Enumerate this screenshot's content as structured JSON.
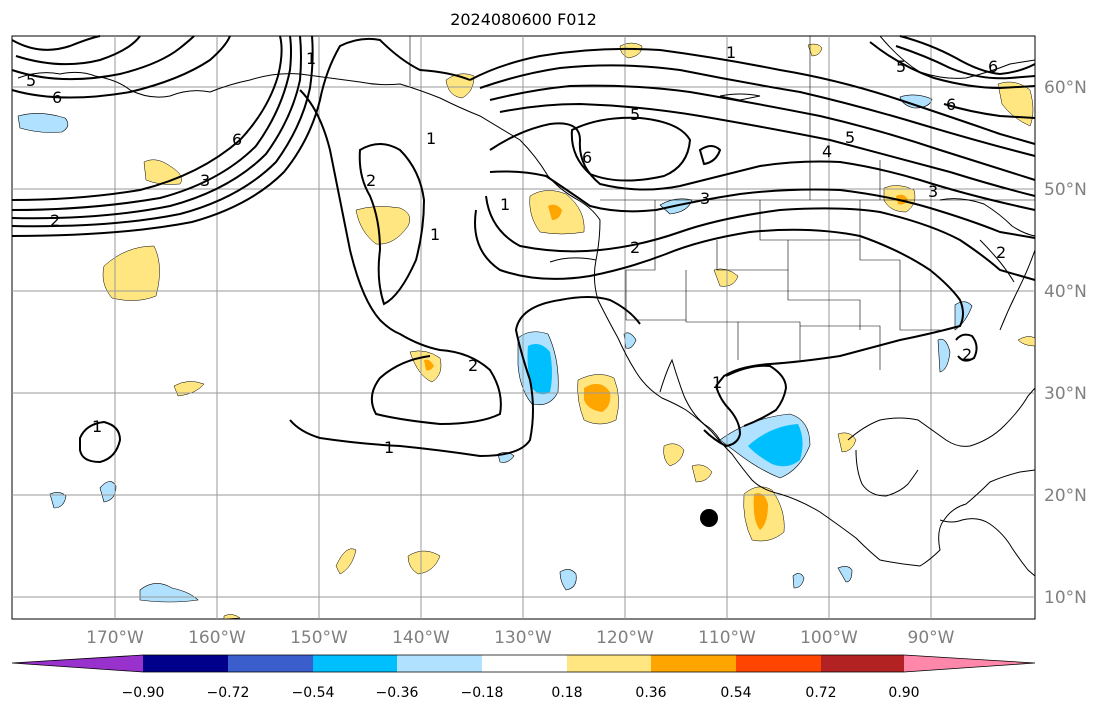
{
  "title": "2024080600 F012",
  "lon_labels": [
    "170°W",
    "160°W",
    "150°W",
    "140°W",
    "130°W",
    "120°W",
    "110°W",
    "100°W",
    "90°W"
  ],
  "lat_labels": [
    "60°N",
    "50°N",
    "40°N",
    "30°N",
    "20°N",
    "10°N"
  ],
  "colorbar": {
    "colors": [
      "#9932cc",
      "#00008b",
      "#3a5fcd",
      "#00bfff",
      "#b0e2ff",
      "#ffffff",
      "#ffe680",
      "#ffa500",
      "#ff4500",
      "#b22222",
      "#ff88aa"
    ],
    "ticks": [
      "−0.90",
      "−0.72",
      "−0.54",
      "−0.36",
      "−0.18",
      "0.18",
      "0.36",
      "0.54",
      "0.72",
      "0.90"
    ]
  },
  "contour_labels": [
    "6",
    "6",
    "6",
    "5",
    "5",
    "5",
    "4",
    "3",
    "3",
    "2",
    "2",
    "2",
    "1",
    "1",
    "1",
    "1",
    "1",
    "2",
    "1",
    "6",
    "5",
    "6",
    "3",
    "2",
    "1",
    "1",
    "2"
  ],
  "colors": {
    "light_blue": "#b0e2ff",
    "blue": "#00bfff",
    "yellow": "#ffe680",
    "orange": "#ffa500",
    "grid": "#9a9a9a"
  }
}
